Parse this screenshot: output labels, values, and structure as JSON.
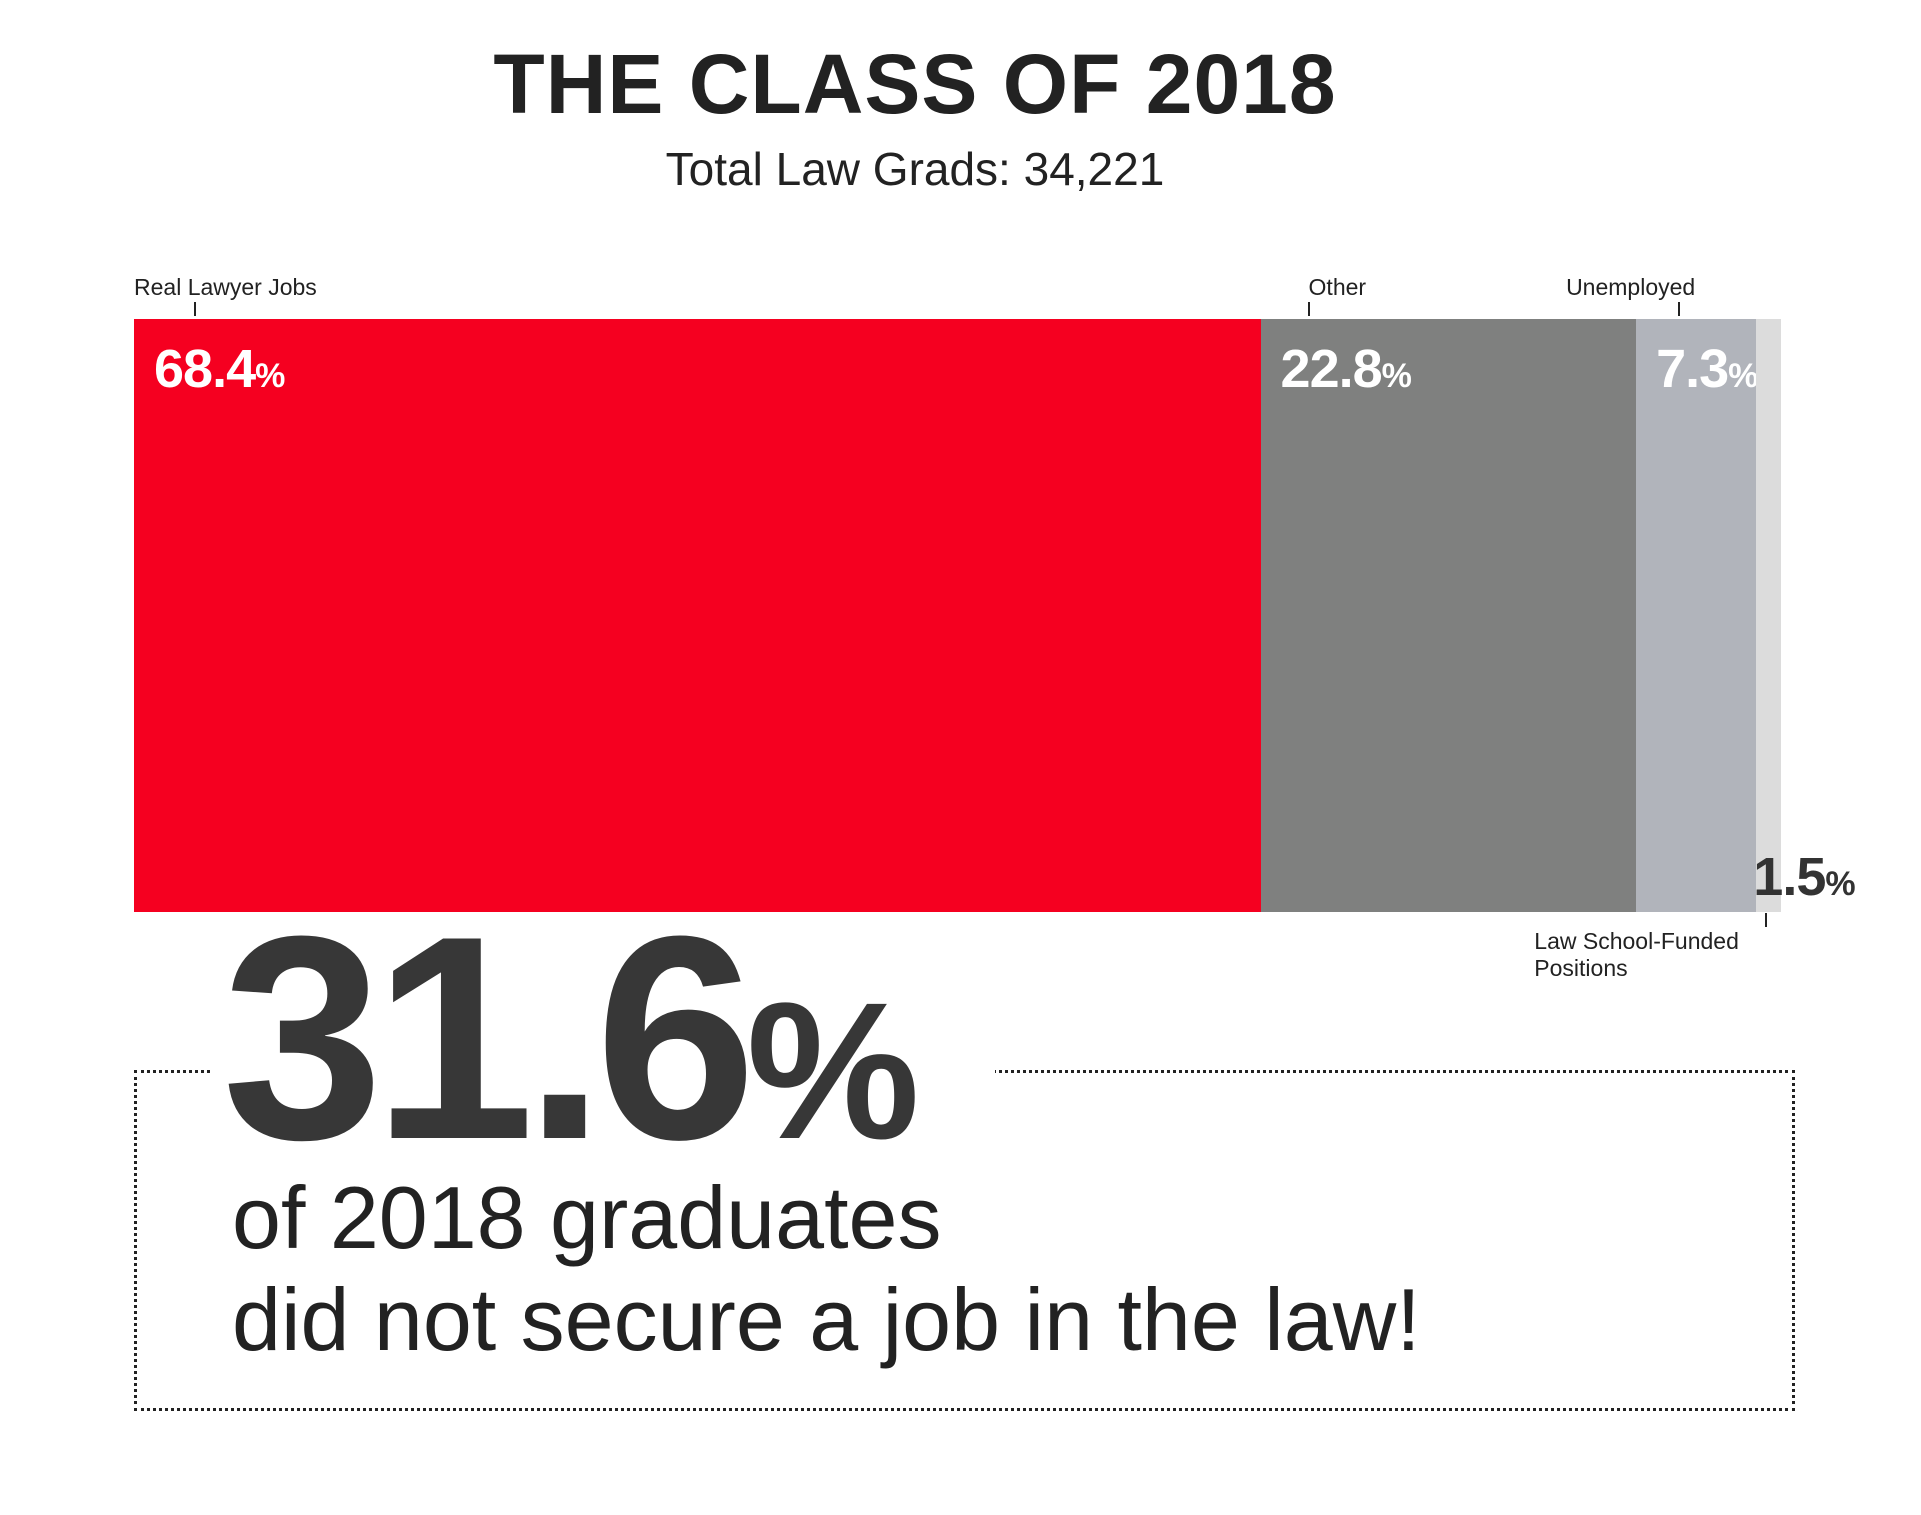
{
  "chart_data": {
    "type": "bar",
    "orientation": "horizontal-stacked",
    "title": "THE CLASS OF 2018",
    "subtitle": "Total Law Grads: 34,221",
    "categories": [
      "Real Lawyer Jobs",
      "Other",
      "Unemployed",
      "Law School-Funded Positions"
    ],
    "values": [
      68.4,
      22.8,
      7.3,
      1.5
    ],
    "labels": [
      "68.4",
      "22.8",
      "7.3",
      "1.5"
    ],
    "unit": "%",
    "colors": [
      "#f50020",
      "#7f807f",
      "#b1b4bb",
      "#dcdcdc"
    ],
    "grid": false
  },
  "callout": {
    "value": "31.6",
    "unit": "%",
    "line1": "of 2018 graduates",
    "line2": "did not secure a job in the law!"
  }
}
